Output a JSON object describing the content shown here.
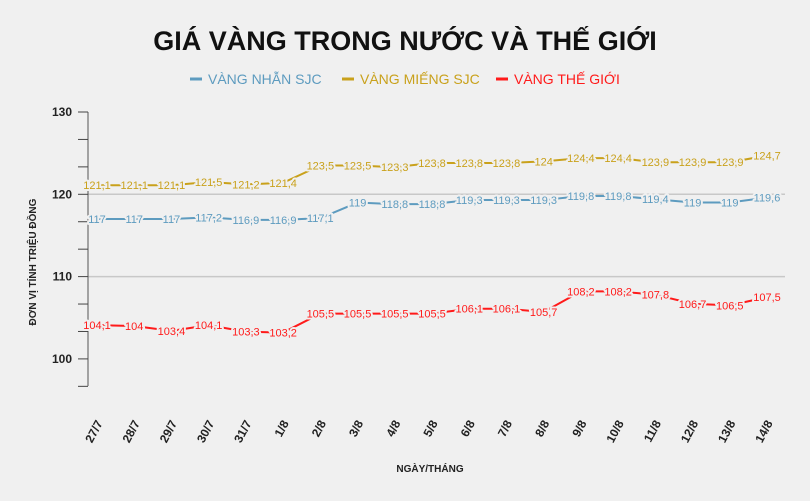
{
  "chart_data": {
    "type": "line",
    "title": "GIÁ VÀNG TRONG NƯỚC VÀ THẾ GIỚI",
    "xlabel": "NGÀY/THÁNG",
    "ylabel": "ĐƠN VỊ TÍNH TRIỆU ĐỒNG",
    "ylim": [
      96.7,
      130
    ],
    "yticks": [
      100,
      110,
      120,
      130
    ],
    "grid": true,
    "legend": "top",
    "categories": [
      "27/7",
      "28/7",
      "29/7",
      "30/7",
      "31/7",
      "1/8",
      "2/8",
      "3/8",
      "4/8",
      "5/8",
      "6/8",
      "7/8",
      "8/8",
      "9/8",
      "10/8",
      "11/8",
      "12/8",
      "13/8",
      "14/8"
    ],
    "series": [
      {
        "name": "VÀNG NHẪN SJC",
        "color": "#5d9bbf",
        "values": [
          117,
          117,
          117,
          117.2,
          116.9,
          116.9,
          117.1,
          119,
          118.8,
          118.8,
          119.3,
          119.3,
          119.3,
          119.8,
          119.8,
          119.4,
          119,
          119,
          119.6
        ]
      },
      {
        "name": "VÀNG MIẾNG SJC",
        "color": "#c9a11b",
        "values": [
          121.1,
          121.1,
          121.1,
          121.5,
          121.2,
          121.4,
          123.5,
          123.5,
          123.3,
          123.8,
          123.8,
          123.8,
          124,
          124.4,
          124.4,
          123.9,
          123.9,
          123.9,
          124.7
        ]
      },
      {
        "name": "VÀNG THẾ GIỚI",
        "color": "#ff1a1a",
        "values": [
          104.1,
          104,
          103.4,
          104.1,
          103.3,
          103.2,
          105.5,
          105.5,
          105.5,
          105.5,
          106.1,
          106.1,
          105.7,
          108.2,
          108.2,
          107.8,
          106.7,
          106.5,
          107.5
        ]
      }
    ]
  }
}
